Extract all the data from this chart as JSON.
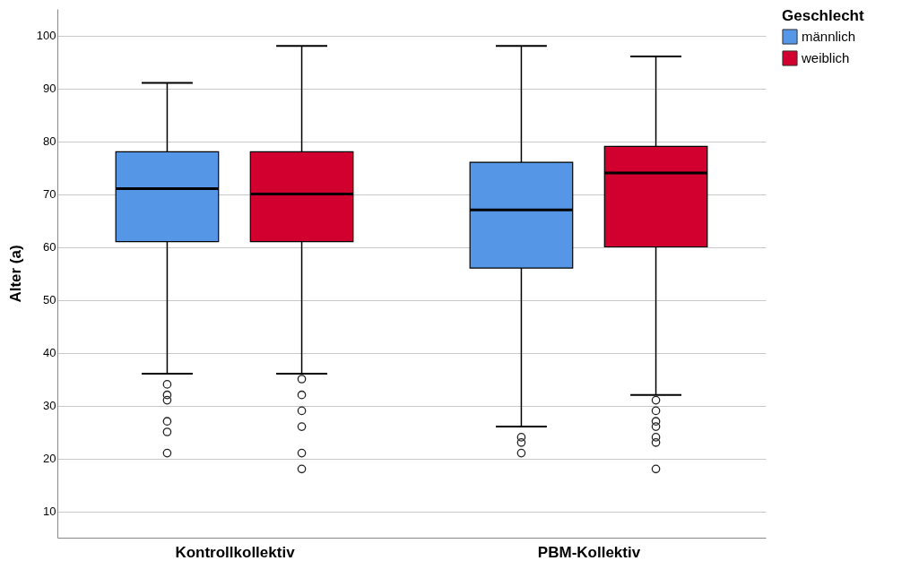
{
  "chart_data": {
    "type": "box",
    "ylabel": "Alter (a)",
    "legend_title": "Geschlecht",
    "categories": [
      "Kontrollkollektiv",
      "PBM-Kollektiv"
    ],
    "series": [
      {
        "name": "männlich",
        "color": "#5596e6",
        "boxes": [
          {
            "low": 36,
            "q1": 61,
            "median": 71,
            "q3": 78,
            "high": 91,
            "outliers": [
              34,
              32,
              31,
              27,
              25,
              21
            ]
          },
          {
            "low": 26,
            "q1": 56,
            "median": 67,
            "q3": 76,
            "high": 98,
            "outliers": [
              24,
              23,
              21
            ]
          }
        ]
      },
      {
        "name": "weiblich",
        "color": "#d2002e",
        "boxes": [
          {
            "low": 36,
            "q1": 61,
            "median": 70,
            "q3": 78,
            "high": 98,
            "outliers": [
              35,
              32,
              29,
              26,
              21,
              18
            ]
          },
          {
            "low": 32,
            "q1": 60,
            "median": 74,
            "q3": 79,
            "high": 96,
            "outliers": [
              31,
              29,
              27,
              26,
              24,
              23,
              18
            ]
          }
        ]
      }
    ],
    "ylim": [
      5,
      105
    ],
    "yticks": [
      10,
      20,
      30,
      40,
      50,
      60,
      70,
      80,
      90,
      100
    ],
    "grid": "y",
    "legend": "top right"
  }
}
